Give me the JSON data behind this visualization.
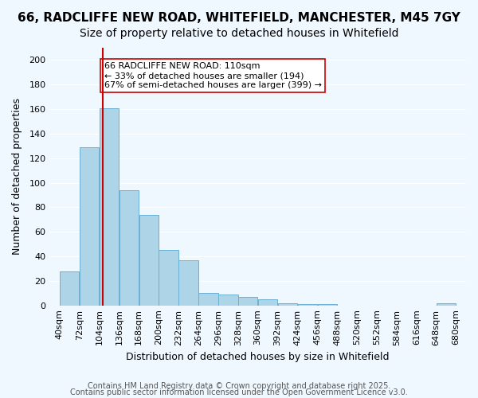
{
  "title1": "66, RADCLIFFE NEW ROAD, WHITEFIELD, MANCHESTER, M45 7GY",
  "title2": "Size of property relative to detached houses in Whitefield",
  "xlabel": "Distribution of detached houses by size in Whitefield",
  "ylabel": "Number of detached properties",
  "bar_color": "#aed4e8",
  "bar_edge_color": "#6ab0d4",
  "bin_edges": [
    40,
    72,
    104,
    136,
    168,
    200,
    232,
    264,
    296,
    328,
    360,
    392,
    424,
    456,
    488,
    520,
    552,
    584,
    616,
    648,
    680
  ],
  "bar_heights": [
    28,
    129,
    161,
    94,
    74,
    45,
    37,
    10,
    9,
    7,
    5,
    2,
    1,
    1,
    0,
    0,
    0,
    0,
    0,
    2
  ],
  "tick_labels": [
    "40sqm",
    "72sqm",
    "104sqm",
    "136sqm",
    "168sqm",
    "200sqm",
    "232sqm",
    "264sqm",
    "296sqm",
    "328sqm",
    "360sqm",
    "392sqm",
    "424sqm",
    "456sqm",
    "488sqm",
    "520sqm",
    "552sqm",
    "584sqm",
    "616sqm",
    "648sqm",
    "680sqm"
  ],
  "vline_x": 110,
  "vline_color": "#cc0000",
  "annotation_title": "66 RADCLIFFE NEW ROAD: 110sqm",
  "annotation_line1": "← 33% of detached houses are smaller (194)",
  "annotation_line2": "67% of semi-detached houses are larger (399) →",
  "annotation_box_color": "#ffffff",
  "annotation_box_edge": "#cc0000",
  "ylim": [
    0,
    210
  ],
  "ytick_step": 20,
  "footer1": "Contains HM Land Registry data © Crown copyright and database right 2025.",
  "footer2": "Contains public sector information licensed under the Open Government Licence v3.0.",
  "background_color": "#f0f8ff",
  "grid_color": "#ffffff",
  "title1_fontsize": 11,
  "title2_fontsize": 10,
  "axis_label_fontsize": 9,
  "tick_fontsize": 8,
  "footer_fontsize": 7
}
